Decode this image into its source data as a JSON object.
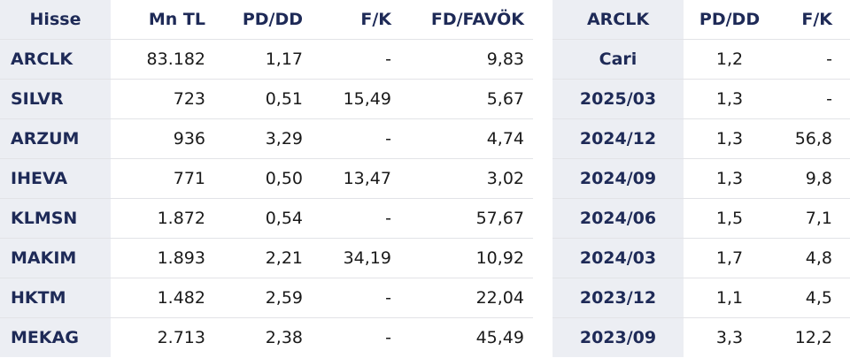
{
  "table1": {
    "headers": [
      "Hisse",
      "Mn TL",
      "PD/DD",
      "F/K",
      "FD/FAVÖK"
    ],
    "rows": [
      [
        "ARCLK",
        "83.182",
        "1,17",
        "-",
        "9,83"
      ],
      [
        "SILVR",
        "723",
        "0,51",
        "15,49",
        "5,67"
      ],
      [
        "ARZUM",
        "936",
        "3,29",
        "-",
        "4,74"
      ],
      [
        "IHEVA",
        "771",
        "0,50",
        "13,47",
        "3,02"
      ],
      [
        "KLMSN",
        "1.872",
        "0,54",
        "-",
        "57,67"
      ],
      [
        "MAKIM",
        "1.893",
        "2,21",
        "34,19",
        "10,92"
      ],
      [
        "HKTM",
        "1.482",
        "2,59",
        "-",
        "22,04"
      ],
      [
        "MEKAG",
        "2.713",
        "2,38",
        "-",
        "45,49"
      ]
    ]
  },
  "table2": {
    "headers": [
      "ARCLK",
      "PD/DD",
      "F/K"
    ],
    "rows": [
      [
        "Cari",
        "1,2",
        "-"
      ],
      [
        "2025/03",
        "1,3",
        "-"
      ],
      [
        "2024/12",
        "1,3",
        "56,8"
      ],
      [
        "2024/09",
        "1,3",
        "9,8"
      ],
      [
        "2024/06",
        "1,5",
        "7,1"
      ],
      [
        "2024/03",
        "1,7",
        "4,8"
      ],
      [
        "2023/12",
        "1,1",
        "4,5"
      ],
      [
        "2023/09",
        "3,3",
        "12,2"
      ]
    ]
  }
}
